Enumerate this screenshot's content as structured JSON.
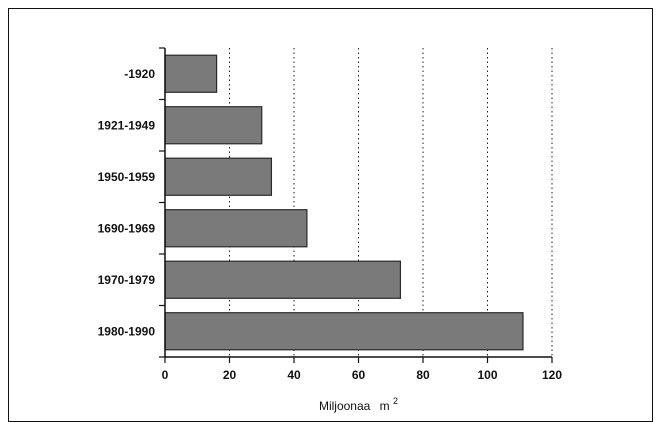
{
  "chart_data": {
    "type": "bar",
    "orientation": "horizontal",
    "categories": [
      "-1920",
      "1921-1949",
      "1950-1959",
      "1690-1969",
      "1970-1979",
      "1980-1990"
    ],
    "values": [
      16,
      30,
      33,
      44,
      73,
      111
    ],
    "xlabel": "Miljoonaa",
    "xlabel_superscript": "2",
    "xlabel_unit": "m",
    "xlim": [
      0,
      120
    ],
    "xticks": [
      0,
      20,
      40,
      60,
      80,
      100,
      120
    ],
    "grid": "vertical dotted",
    "bar_color": "#7a7a7a"
  }
}
